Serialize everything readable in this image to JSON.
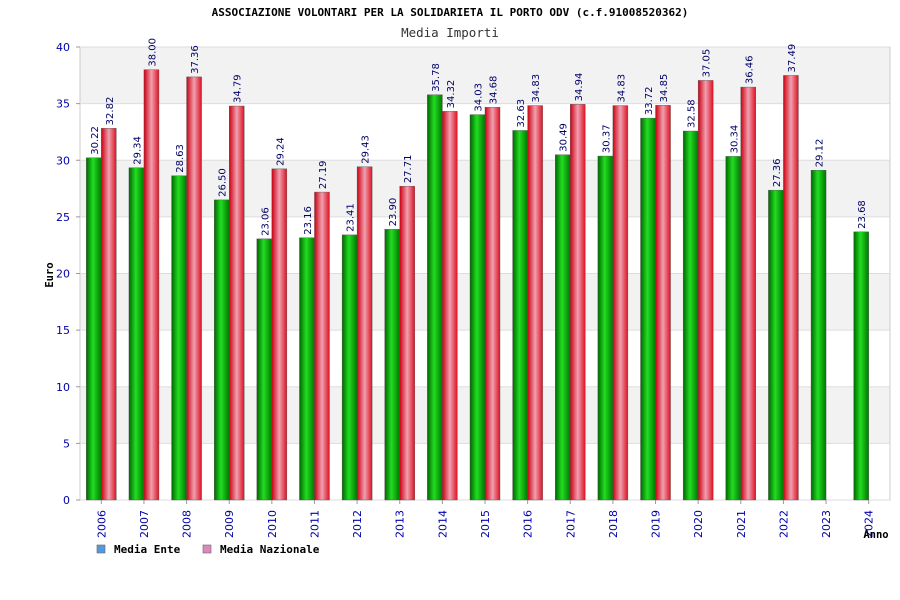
{
  "chart_data": {
    "type": "bar",
    "title": "ASSOCIAZIONE VOLONTARI PER LA SOLIDARIETA IL PORTO ODV (c.f.91008520362)",
    "subtitle": "Media Importi",
    "xlabel": "Anno",
    "ylabel": "Euro",
    "ylim": [
      0,
      40
    ],
    "yticks": [
      0,
      5,
      10,
      15,
      20,
      25,
      30,
      35,
      40
    ],
    "categories": [
      "2006",
      "2007",
      "2008",
      "2009",
      "2010",
      "2011",
      "2012",
      "2013",
      "2014",
      "2015",
      "2016",
      "2017",
      "2018",
      "2019",
      "2020",
      "2021",
      "2022",
      "2023",
      "2024"
    ],
    "series": [
      {
        "name": "Media Ente",
        "color": "#00aa00",
        "values": [
          30.22,
          29.34,
          28.63,
          26.5,
          23.06,
          23.16,
          23.41,
          23.9,
          35.78,
          34.03,
          32.63,
          30.49,
          30.37,
          33.72,
          32.58,
          30.34,
          27.36,
          29.12,
          23.68
        ],
        "labels": [
          "30.22",
          "29.34",
          "28.63",
          "26.50",
          "23.06",
          "23.16",
          "23.41",
          "23.90",
          "35.78",
          "34.03",
          "32.63",
          "30.49",
          "30.37",
          "33.72",
          "32.58",
          "30.34",
          "27.36",
          "29.12",
          "23.68"
        ]
      },
      {
        "name": "Media Nazionale",
        "color": "#dd1122",
        "values": [
          32.82,
          38.0,
          37.36,
          34.79,
          29.24,
          27.19,
          29.43,
          27.71,
          34.32,
          34.68,
          34.83,
          34.94,
          34.83,
          34.85,
          37.05,
          36.46,
          37.49,
          null,
          null
        ],
        "labels": [
          "32.82",
          "38.00",
          "37.36",
          "34.79",
          "29.24",
          "27.19",
          "29.43",
          "27.71",
          "34.32",
          "34.68",
          "34.83",
          "34.94",
          "34.83",
          "34.85",
          "37.05",
          "36.46",
          "37.49",
          null,
          null
        ]
      }
    ],
    "legend": [
      {
        "label": "Media Ente",
        "color": "#5599dd"
      },
      {
        "label": "Media Nazionale",
        "color": "#dd88bb"
      }
    ],
    "grid": true,
    "legend_position": "bottom-left"
  }
}
